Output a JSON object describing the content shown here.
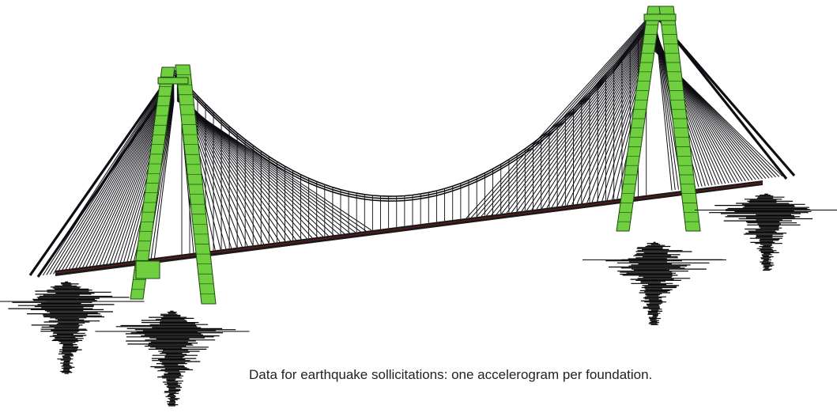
{
  "caption": "Data for earthquake sollicitations: one accelerogram per foundation.",
  "colors": {
    "pylon": "#6fcf3f",
    "pylon_edge": "#1e4a12",
    "cable": "#0d0d12",
    "deck": "#1a1a1a",
    "deck_accent": "#7a1a1a",
    "seismogram": "#000000"
  },
  "icons": {
    "pylon": "bridge-pylon",
    "accelerogram": "seismogram-trace"
  },
  "accelerogram_count": 4
}
